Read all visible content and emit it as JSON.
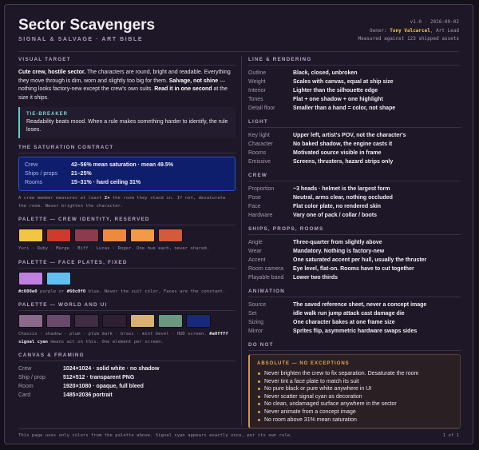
{
  "header": {
    "title": "Sector Scavengers",
    "subtitle": "SIGNAL & SALVAGE · ART BIBLE",
    "meta": [
      {
        "segments": [
          {
            "text": "v1.0 · 2026-09-02"
          }
        ]
      },
      {
        "segments": [
          {
            "text": "Owner: "
          },
          {
            "text": "Tony Valcarcel",
            "style": "highlight"
          },
          {
            "text": ", Art Lead"
          }
        ]
      },
      {
        "segments": [
          {
            "text": "Measured against 123 shipped assets"
          }
        ]
      }
    ]
  },
  "columns": [
    [
      {
        "heading": "VISUAL TARGET",
        "paragraph": [
          {
            "text": "Cute crew, hostile sector.",
            "style": "strong"
          },
          {
            "text": " The characters are round, bright and readable. Everything they move through is dim, worn and slightly too big for them. "
          },
          {
            "text": "Salvage, not shine",
            "style": "strong"
          },
          {
            "text": " — nothing looks factory-new except the crew's own suits. "
          },
          {
            "text": "Read it in one second",
            "style": "strong"
          },
          {
            "text": " at the size it ships."
          }
        ],
        "callout": {
          "title": "TIE-BREAKER",
          "text": "Readability beats mood. When a rule makes something harder to identify, the rule loses."
        }
      },
      {
        "heading": "THE SATURATION CONTRACT",
        "contract": [
          [
            "Crew",
            "42–56% mean saturation · mean 49.5%"
          ],
          [
            "Ships / props",
            "21–25%"
          ],
          [
            "Rooms",
            "15–31% · hard ceiling 31%"
          ]
        ],
        "note": [
          {
            "text": "A crew member measures at least "
          },
          {
            "text": "2×",
            "style": "strong"
          },
          {
            "text": " the room they stand in. If not, desaturate the room. Never brighten the character."
          }
        ]
      },
      {
        "heading": "PALETTE — CREW IDENTITY, RESERVED",
        "swatches": [
          "#f4c443",
          "#cf3a2c",
          "#8c3b4c",
          "#ee8a3e",
          "#f29a45",
          "#d45a3c"
        ],
        "note": [
          {
            "text": "Yuri · Ruby · Marge · Biff · Lucas · Roger. One hue each, never shared."
          }
        ]
      },
      {
        "heading": "PALETTE — FACE PLATES, FIXED",
        "swatches": [
          "#c080e0",
          "#60c0f0"
        ],
        "note": [
          {
            "text": "#c080e0",
            "style": "code"
          },
          {
            "text": " purple or "
          },
          {
            "text": "#60c0f0",
            "style": "code"
          },
          {
            "text": " blue. Never the suit color. Faces are the constant."
          }
        ]
      },
      {
        "heading": "PALETTE — WORLD AND UI",
        "swatches": [
          "#8a6a8c",
          "#684a6c",
          "#3f2d44",
          "#2c2032",
          "#d9b270",
          "#6a9880",
          "#18287a"
        ],
        "note": [
          {
            "text": "Chassis · shadow · plum · plum dark · brass · mint bevel · HUD screen. "
          },
          {
            "text": "#a0ffff signal cyan",
            "style": "code"
          },
          {
            "text": " means act on this. One element per screen."
          }
        ]
      },
      {
        "heading": "CANVAS & FRAMING",
        "rows": [
          [
            "Crew",
            "1024×1024 · solid white · no shadow"
          ],
          [
            "Ship / prop",
            "512×512 · transparent PNG"
          ],
          [
            "Room",
            "1920×1080 · opaque, full bleed"
          ],
          [
            "Card",
            "1485×2036 portrait"
          ]
        ]
      }
    ],
    [
      {
        "heading": "LINE & RENDERING",
        "rows": [
          [
            "Outline",
            "Black, closed, unbroken"
          ],
          [
            "Weight",
            "Scales with canvas, equal at ship size"
          ],
          [
            "Interior",
            "Lighter than the silhouette edge"
          ],
          [
            "Tones",
            "Flat + one shadow + one highlight"
          ],
          [
            "Detail floor",
            "Smaller than a hand = color, not shape"
          ]
        ]
      },
      {
        "heading": "LIGHT",
        "rows": [
          [
            "Key light",
            "Upper left, artist's POV, not the character's"
          ],
          [
            "Character",
            "No baked shadow, the engine casts it"
          ],
          [
            "Rooms",
            "Motivated source visible in frame"
          ],
          [
            "Emissive",
            "Screens, thrusters, hazard strips only"
          ]
        ]
      },
      {
        "heading": "CREW",
        "rows": [
          [
            "Proportion",
            "~3 heads · helmet is the largest form"
          ],
          [
            "Pose",
            "Neutral, arms clear, nothing occluded"
          ],
          [
            "Face",
            "Flat color plate, no rendered skin"
          ],
          [
            "Hardware",
            "Vary one of pack / collar / boots"
          ]
        ]
      },
      {
        "heading": "SHIPS, PROPS, ROOMS",
        "rows": [
          [
            "Angle",
            "Three-quarter from slightly above"
          ],
          [
            "Wear",
            "Mandatory. Nothing is factory-new"
          ],
          [
            "Accent",
            "One saturated accent per hull, usually the thruster"
          ],
          [
            "Room camera",
            "Eye level, flat-on. Rooms have to cut together"
          ],
          [
            "Playable band",
            "Lower two thirds"
          ]
        ]
      },
      {
        "heading": "ANIMATION",
        "rows": [
          [
            "Source",
            "The saved reference sheet, never a concept image"
          ],
          [
            "Set",
            "idle walk run jump attack cast damage die"
          ],
          [
            "Sizing",
            "One character bakes at one frame size"
          ],
          [
            "Mirror",
            "Sprites flip, asymmetric hardware swaps sides"
          ]
        ]
      },
      {
        "heading": "DO NOT",
        "warning": {
          "title": "ABSOLUTE — NO EXCEPTIONS",
          "items": [
            "Never brighten the crew to fix separation. Desaturate the room",
            "Never tint a face plate to match its suit",
            "No pure black or pure white anywhere in UI",
            "Never scatter signal cyan as decoration",
            "No clean, undamaged surface anywhere in the sector",
            "Never animate from a concept image",
            "No room above 31% mean saturation"
          ]
        }
      }
    ]
  ],
  "footer": {
    "text": "This page uses only colors from the palette above. Signal cyan appears exactly once, per its own rule.",
    "page": "1 of 1"
  }
}
